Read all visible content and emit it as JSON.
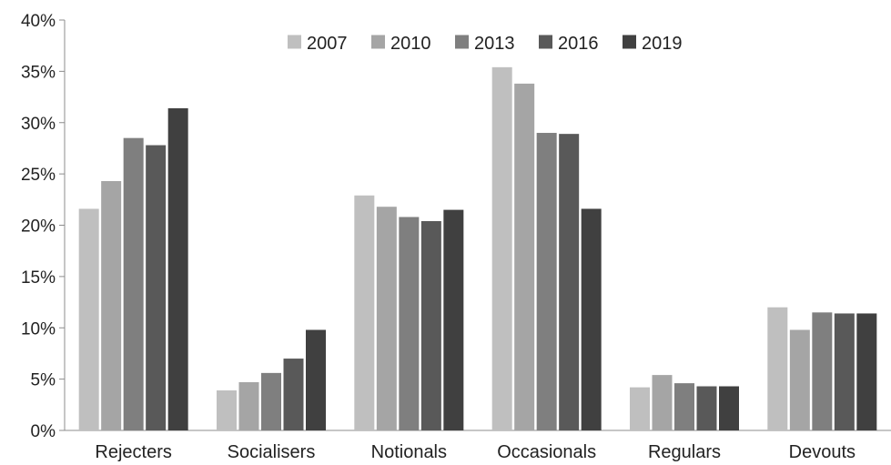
{
  "chart_data": {
    "type": "bar",
    "categories": [
      "Rejecters",
      "Socialisers",
      "Notionals",
      "Occasionals",
      "Regulars",
      "Devouts"
    ],
    "series": [
      {
        "name": "2007",
        "color": "#bfbfbf",
        "values": [
          21.6,
          3.9,
          22.9,
          35.4,
          4.2,
          12.0
        ]
      },
      {
        "name": "2010",
        "color": "#a5a5a5",
        "values": [
          24.3,
          4.7,
          21.8,
          33.8,
          5.4,
          9.8
        ]
      },
      {
        "name": "2013",
        "color": "#7f7f7f",
        "values": [
          28.5,
          5.6,
          20.8,
          29.0,
          4.6,
          11.5
        ]
      },
      {
        "name": "2016",
        "color": "#595959",
        "values": [
          27.8,
          7.0,
          20.4,
          28.9,
          4.3,
          11.4
        ]
      },
      {
        "name": "2019",
        "color": "#404040",
        "values": [
          31.4,
          9.8,
          21.5,
          21.6,
          4.3,
          11.4
        ]
      }
    ],
    "yticks": [
      "0%",
      "5%",
      "10%",
      "15%",
      "20%",
      "25%",
      "30%",
      "35%",
      "40%"
    ],
    "ylim": [
      0,
      40
    ],
    "grid": false,
    "legend": "top-center"
  }
}
